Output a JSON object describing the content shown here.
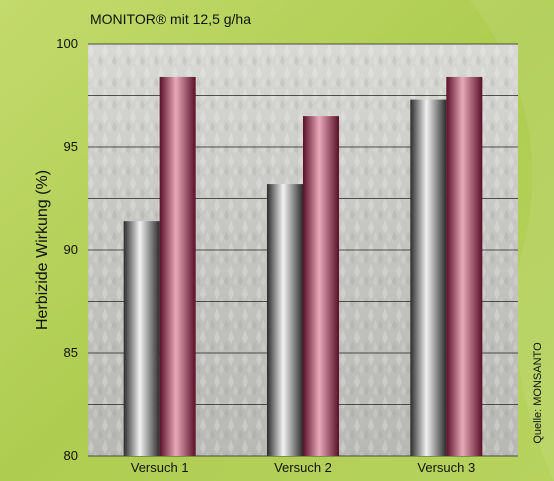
{
  "chart_data": {
    "type": "bar",
    "title": "MONITOR® mit 12,5 g/ha",
    "ylabel": "Herbizide Wirkung (%)",
    "xlabel": "",
    "ylim": [
      80,
      100
    ],
    "yticks": [
      80,
      85,
      90,
      95,
      100
    ],
    "grid": true,
    "categories": [
      "Versuch 1",
      "Versuch 2",
      "Versuch 3"
    ],
    "series": [
      {
        "values": [
          91.4,
          93.2,
          97.3
        ],
        "color": "#6b6b6b"
      },
      {
        "values": [
          98.4,
          96.5,
          98.4
        ],
        "color": "#8a1a3d"
      }
    ]
  },
  "source": "Quelle: MONSANTO",
  "colors": {
    "background": "#b9d35f",
    "plot_area": "#c9c9c6",
    "gray_bar": "#6b6b6b",
    "maroon_bar": "#8a1a3d",
    "grid": "#222222"
  }
}
